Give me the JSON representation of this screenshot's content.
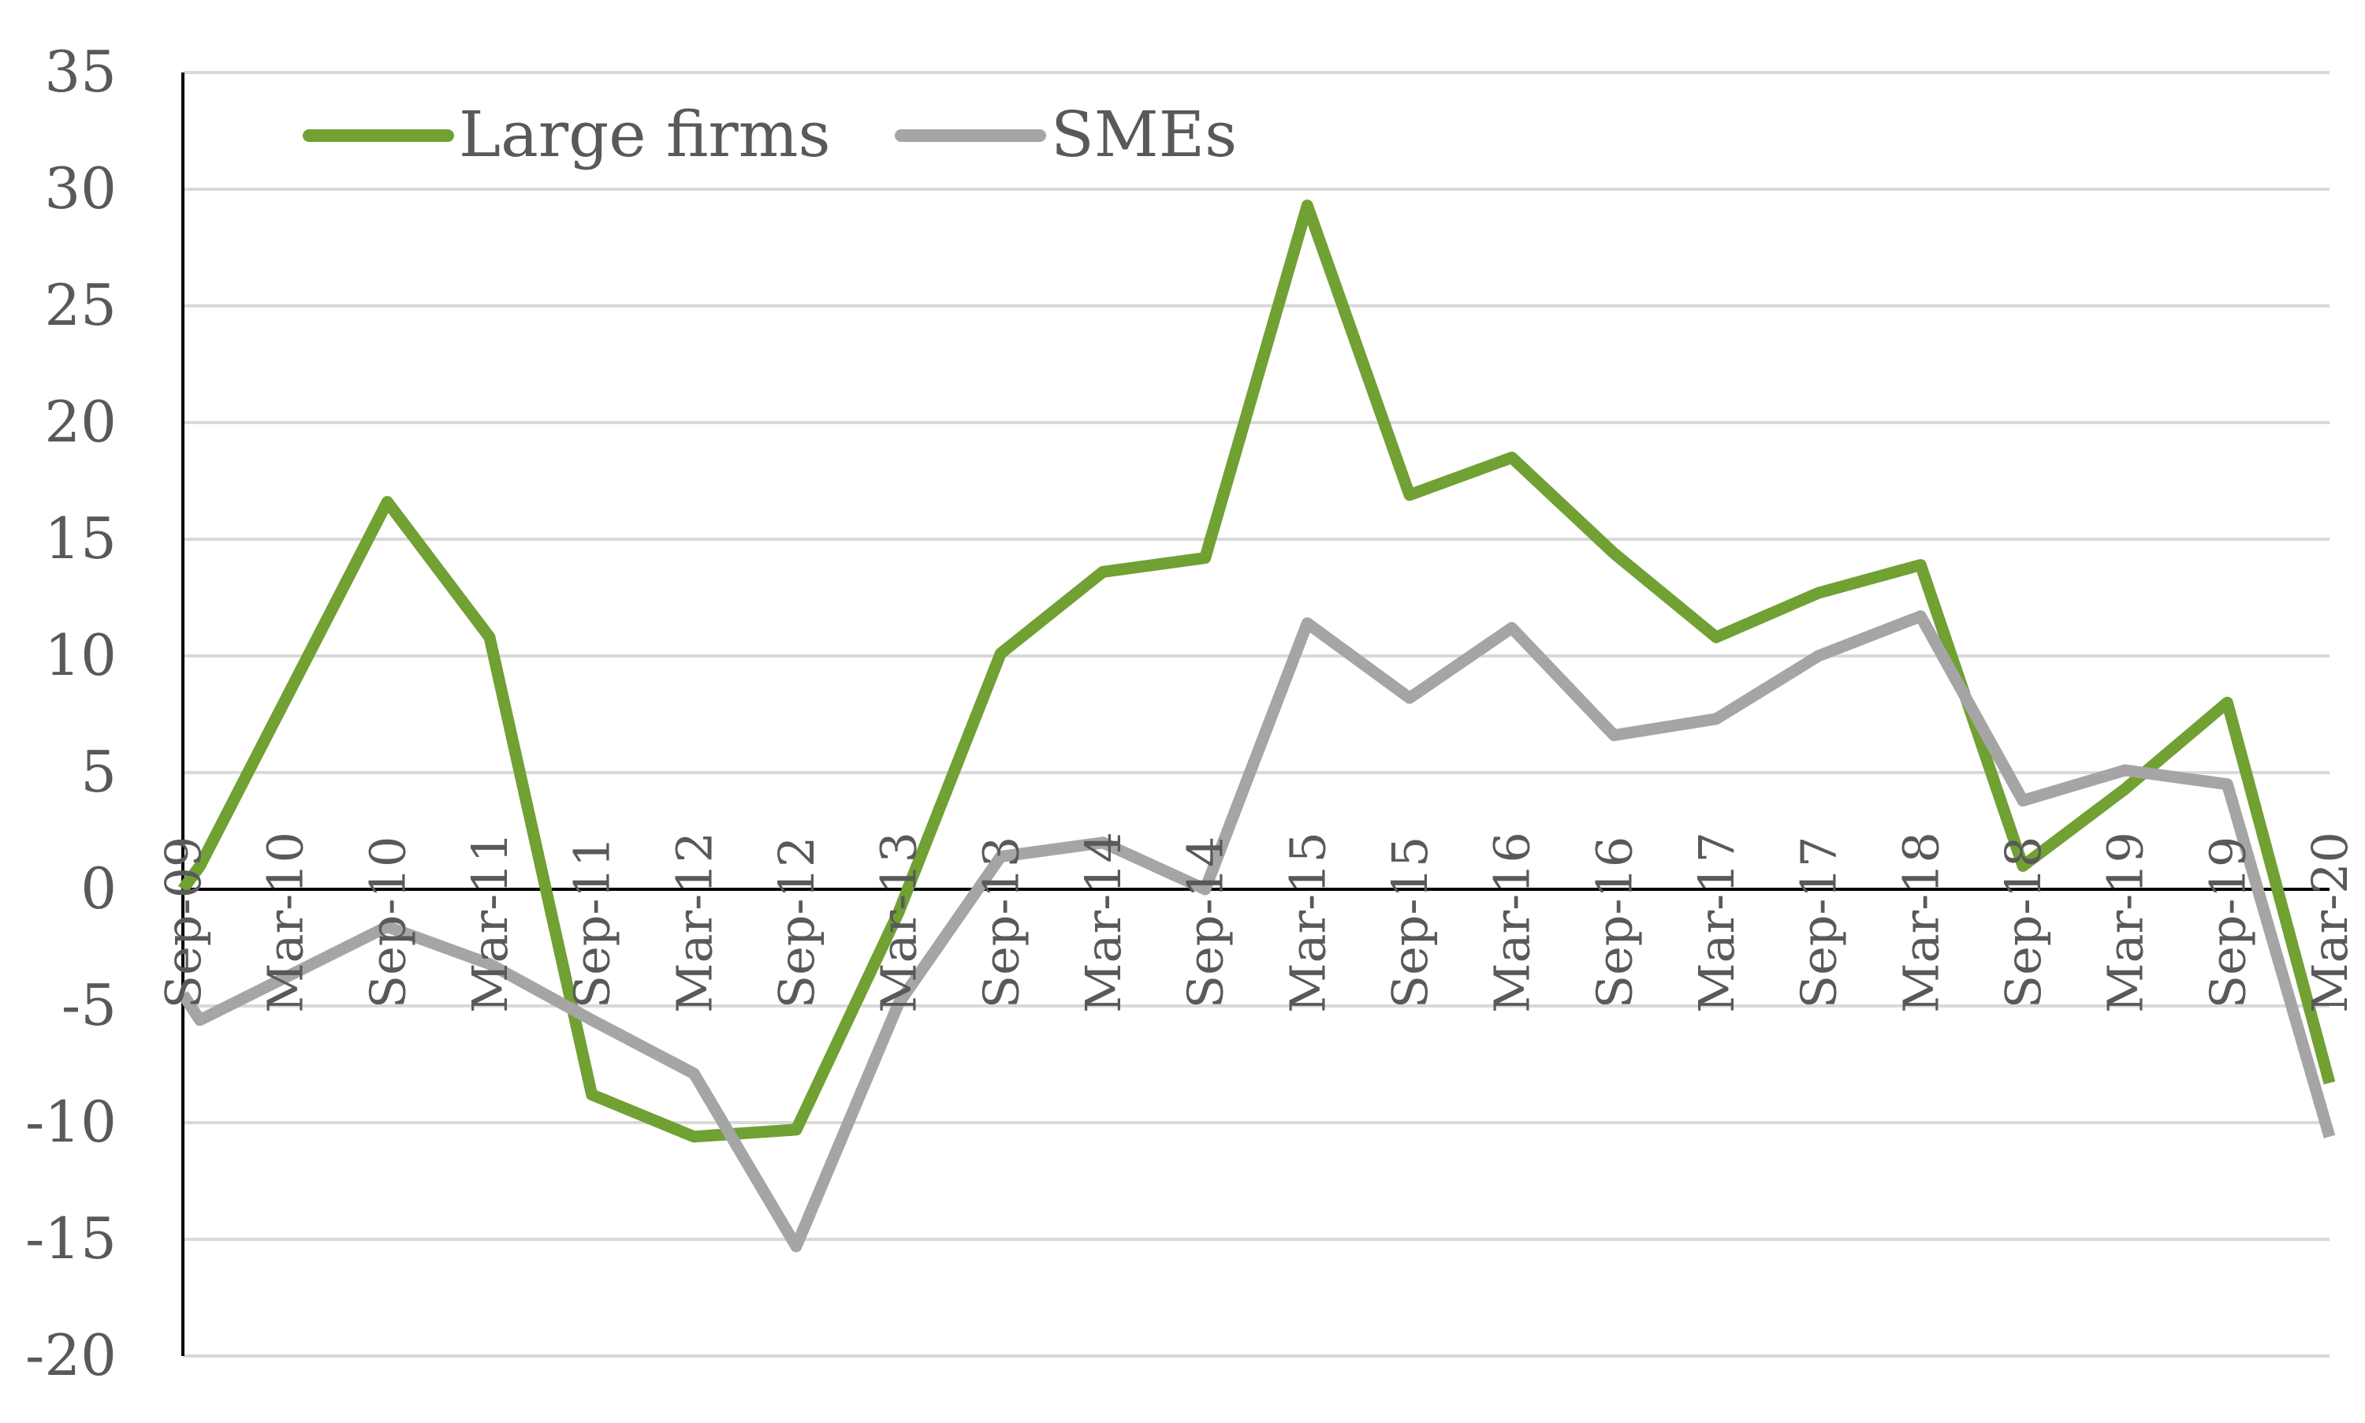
{
  "chart_data": {
    "type": "line",
    "title": "",
    "xlabel": "",
    "ylabel": "",
    "ylim": [
      -20,
      35
    ],
    "yticks": [
      35,
      30,
      25,
      20,
      15,
      10,
      5,
      0,
      -5,
      -10,
      -15,
      -20
    ],
    "ytick_labels": [
      "35",
      "30",
      "25",
      "20",
      "15",
      "10",
      "5",
      "0",
      "-5",
      "-10",
      "-15",
      "-20"
    ],
    "grid": true,
    "legend_position": "top-left",
    "x": [
      "2009-09",
      "2009-12",
      "2010-03",
      "2010-06",
      "2010-09",
      "2010-12",
      "2011-03",
      "2011-06",
      "2011-09",
      "2011-12",
      "2012-03",
      "2012-06",
      "2012-09",
      "2012-12",
      "2013-03",
      "2013-06",
      "2013-09",
      "2013-12",
      "2014-03",
      "2014-06",
      "2014-09",
      "2014-12",
      "2015-03",
      "2015-06",
      "2015-09",
      "2015-12",
      "2016-03",
      "2016-06",
      "2016-09",
      "2016-12",
      "2017-03",
      "2017-06",
      "2017-09",
      "2017-12",
      "2018-03",
      "2018-06",
      "2018-09",
      "2018-12",
      "2019-03",
      "2019-06",
      "2019-09",
      "2019-12",
      "2020-03"
    ],
    "xtick_labels": [
      "Sep-09",
      "Mar-10",
      "Sep-10",
      "Mar-11",
      "Sep-11",
      "Mar-12",
      "Sep-12",
      "Mar-13",
      "Sep-13",
      "Mar-14",
      "Sep-14",
      "Mar-15",
      "Sep-15",
      "Mar-16",
      "Sep-16",
      "Mar-17",
      "Sep-17",
      "Mar-18",
      "Sep-18",
      "Mar-19",
      "Sep-19",
      "Mar-20"
    ],
    "series": [
      {
        "name": "Large firms",
        "color": "#71a033",
        "points": [
          {
            "x": "2009-09",
            "y": 0
          },
          {
            "x": "2009-10",
            "y": 1
          },
          {
            "x": "2010-09",
            "y": 16.6
          },
          {
            "x": "2011-03",
            "y": 10.8
          },
          {
            "x": "2011-09",
            "y": -8.8
          },
          {
            "x": "2012-03",
            "y": -10.6
          },
          {
            "x": "2012-09",
            "y": -10.3
          },
          {
            "x": "2013-03",
            "y": -1
          },
          {
            "x": "2013-09",
            "y": 10.1
          },
          {
            "x": "2014-03",
            "y": 13.6
          },
          {
            "x": "2014-09",
            "y": 14.2
          },
          {
            "x": "2015-03",
            "y": 29.3
          },
          {
            "x": "2015-09",
            "y": 16.9
          },
          {
            "x": "2016-03",
            "y": 18.5
          },
          {
            "x": "2016-09",
            "y": 14.4
          },
          {
            "x": "2017-03",
            "y": 10.8
          },
          {
            "x": "2017-09",
            "y": 12.7
          },
          {
            "x": "2018-03",
            "y": 13.9
          },
          {
            "x": "2018-09",
            "y": 1
          },
          {
            "x": "2019-03",
            "y": 4.3
          },
          {
            "x": "2019-09",
            "y": 8
          },
          {
            "x": "2020-03",
            "y": -8.3
          }
        ]
      },
      {
        "name": "SMEs",
        "color": "#a5a5a5",
        "points": [
          {
            "x": "2009-09",
            "y": -4.5
          },
          {
            "x": "2009-10",
            "y": -5.6
          },
          {
            "x": "2010-09",
            "y": -1.6
          },
          {
            "x": "2011-03",
            "y": -3.2
          },
          {
            "x": "2011-09",
            "y": -5.6
          },
          {
            "x": "2012-03",
            "y": -7.9
          },
          {
            "x": "2012-09",
            "y": -15.3
          },
          {
            "x": "2013-03",
            "y": -4.9
          },
          {
            "x": "2013-09",
            "y": 1.4
          },
          {
            "x": "2014-03",
            "y": 2
          },
          {
            "x": "2014-09",
            "y": 0
          },
          {
            "x": "2015-03",
            "y": 11.4
          },
          {
            "x": "2015-09",
            "y": 8.2
          },
          {
            "x": "2016-03",
            "y": 11.2
          },
          {
            "x": "2016-09",
            "y": 6.6
          },
          {
            "x": "2017-03",
            "y": 7.3
          },
          {
            "x": "2017-09",
            "y": 10
          },
          {
            "x": "2018-03",
            "y": 11.7
          },
          {
            "x": "2018-09",
            "y": 3.8
          },
          {
            "x": "2019-03",
            "y": 5.1
          },
          {
            "x": "2019-09",
            "y": 4.5
          },
          {
            "x": "2020-03",
            "y": -10.6
          }
        ]
      }
    ]
  }
}
